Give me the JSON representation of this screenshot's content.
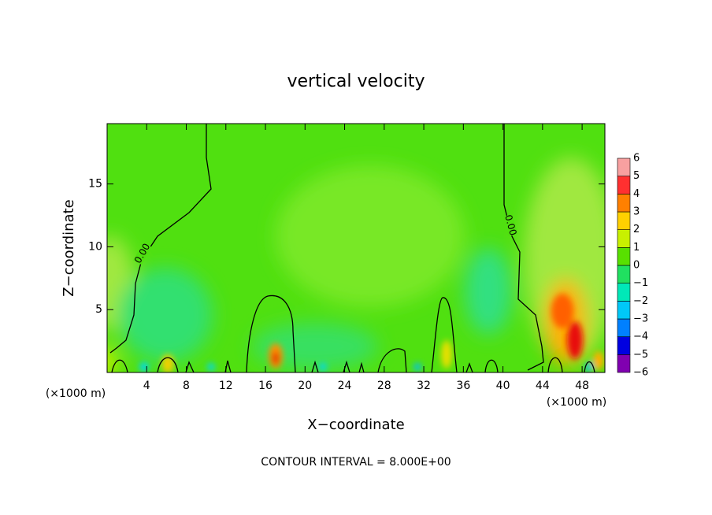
{
  "chart_data": {
    "type": "contour",
    "title": "vertical velocity",
    "x_label": "X−coordinate",
    "y_label": "Z−coordinate",
    "x_unit": "(×1000 m)",
    "y_unit": "(×1000 m)",
    "annotation": "CONTOUR INTERVAL = 8.000E+00",
    "contour_labels": [
      "0.00",
      "0.00"
    ],
    "xlim": [
      0,
      50.3
    ],
    "ylim": [
      0,
      19.8
    ],
    "xticks": [
      4,
      8,
      12,
      16,
      20,
      24,
      28,
      32,
      36,
      40,
      44,
      48
    ],
    "yticks": [
      5,
      10,
      15
    ],
    "colorbar": {
      "levels": [
        {
          "value": -6,
          "label": "−6"
        },
        {
          "value": -5,
          "label": "−5"
        },
        {
          "value": -4,
          "label": "−4"
        },
        {
          "value": -3,
          "label": "−3"
        },
        {
          "value": -2,
          "label": "−2"
        },
        {
          "value": -1,
          "label": "−1"
        },
        0,
        1,
        2,
        3,
        4,
        5,
        6
      ],
      "colors": [
        "#8000b0",
        "#0000e0",
        "#0080ff",
        "#00c8f8",
        "#00e8b8",
        "#20e060",
        "#58e000",
        "#c8f000",
        "#ffd000",
        "#ff8000",
        "#ff3030",
        "#f8a0a0"
      ]
    }
  }
}
